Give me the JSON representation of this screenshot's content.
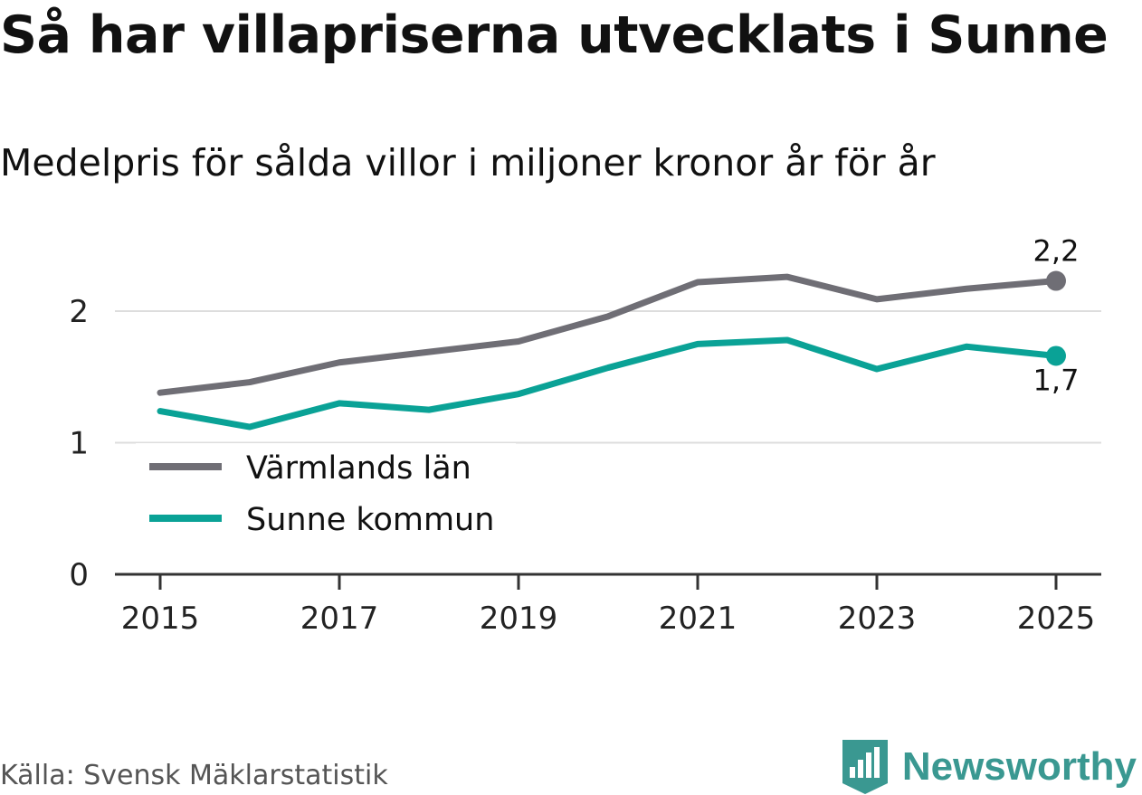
{
  "header": {
    "title": "Så har villapriserna utvecklats i Sunne",
    "subtitle": "Medelpris för sålda villor i miljoner kronor år för år"
  },
  "chart_data": {
    "type": "line",
    "title": "Så har villapriserna utvecklats i Sunne",
    "subtitle": "Medelpris för sålda villor i miljoner kronor år för år",
    "xlabel": "",
    "ylabel": "",
    "x": [
      2015,
      2016,
      2017,
      2018,
      2019,
      2020,
      2021,
      2022,
      2023,
      2024,
      2025
    ],
    "xticks": [
      2015,
      2017,
      2019,
      2021,
      2023,
      2025
    ],
    "yticks": [
      0,
      1,
      2
    ],
    "ytick_labels": [
      "0",
      "1",
      "2"
    ],
    "xlim": [
      2015,
      2025
    ],
    "ylim": [
      0,
      2.4
    ],
    "grid": true,
    "legend_position": "bottom-left",
    "series": [
      {
        "name": "Värmlands län",
        "color": "#6f6e75",
        "values": [
          1.38,
          1.46,
          1.61,
          1.69,
          1.77,
          1.96,
          2.22,
          2.26,
          2.09,
          2.17,
          2.23
        ],
        "end_label": "2,2"
      },
      {
        "name": "Sunne kommun",
        "color": "#0aa296",
        "values": [
          1.24,
          1.12,
          1.3,
          1.25,
          1.37,
          1.57,
          1.75,
          1.78,
          1.56,
          1.73,
          1.66
        ],
        "end_label": "1,7"
      }
    ]
  },
  "footer": {
    "source": "Källa: Svensk Mäklarstatistik",
    "brand": "Newsworthy",
    "brand_color": "#3a9891",
    "brand_icon": "bar-chart-badge-icon"
  }
}
